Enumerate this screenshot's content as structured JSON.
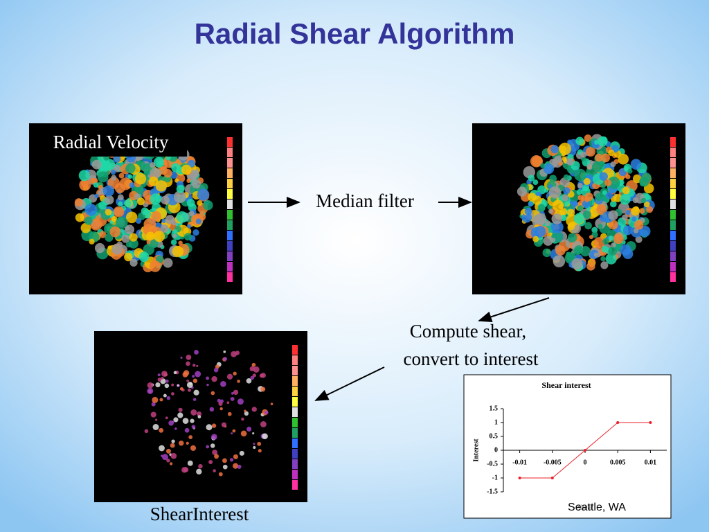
{
  "title": "Radial Shear Algorithm",
  "labels": {
    "radial_velocity": "Radial Velocity",
    "median_filter": "Median filter",
    "compute_shear": [
      "Compute shear,",
      "convert to interest"
    ],
    "shear_interest": "ShearInterest",
    "location": "Seattle, WA"
  },
  "chart_data": {
    "type": "line",
    "title": "Shear interest",
    "x_label": "Shear",
    "y_label": "Interest",
    "x": [
      -0.01,
      -0.005,
      0,
      0.005,
      0.01
    ],
    "series": [
      {
        "name": "Interest",
        "color": "#e8202a",
        "values": [
          -1,
          -1,
          0,
          1,
          1
        ]
      }
    ],
    "xlim": [
      -0.0125,
      0.0125
    ],
    "xticks": [
      -0.01,
      -0.005,
      0,
      0.005,
      0.01
    ],
    "ylim": [
      -1.5,
      1.5
    ],
    "yticks": [
      -1.5,
      -1,
      -0.5,
      0,
      0.5,
      1,
      1.5
    ]
  }
}
